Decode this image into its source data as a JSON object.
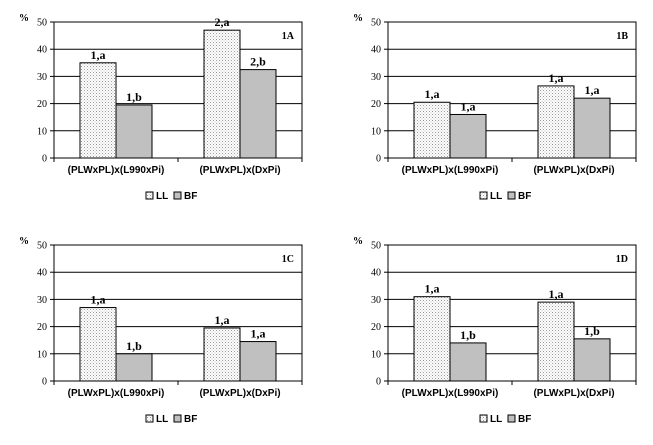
{
  "chart_data": [
    {
      "type": "bar",
      "panel_label": "1A",
      "ylabel": "%",
      "ylim": [
        0,
        50
      ],
      "yticks": [
        0,
        10,
        20,
        30,
        40,
        50
      ],
      "grid": true,
      "categories": [
        "(PLWxPL)x(L990xPi)",
        "(PLWxPL)x(DxPi)"
      ],
      "series": [
        {
          "name": "LL",
          "values": [
            35,
            47
          ],
          "labels": [
            "1,a",
            "2,a"
          ],
          "color": "#ffffff",
          "pattern": "dotted"
        },
        {
          "name": "BF",
          "values": [
            19.5,
            32.5
          ],
          "labels": [
            "1,b",
            "2,b"
          ],
          "color": "#c0c0c0"
        }
      ],
      "legend_position": "bottom"
    },
    {
      "type": "bar",
      "panel_label": "1B",
      "ylabel": "%",
      "ylim": [
        0,
        50
      ],
      "yticks": [
        0,
        10,
        20,
        30,
        40,
        50
      ],
      "grid": true,
      "categories": [
        "(PLWxPL)x(L990xPi)",
        "(PLWxPL)x(DxPi)"
      ],
      "series": [
        {
          "name": "LL",
          "values": [
            20.5,
            26.5
          ],
          "labels": [
            "1,a",
            "1,a"
          ],
          "color": "#ffffff",
          "pattern": "dotted"
        },
        {
          "name": "BF",
          "values": [
            16,
            22
          ],
          "labels": [
            "1,a",
            "1,a"
          ],
          "color": "#c0c0c0"
        }
      ],
      "legend_position": "bottom"
    },
    {
      "type": "bar",
      "panel_label": "1C",
      "ylabel": "%",
      "ylim": [
        0,
        50
      ],
      "yticks": [
        0,
        10,
        20,
        30,
        40,
        50
      ],
      "grid": true,
      "categories": [
        "(PLWxPL)x(L990xPi)",
        "(PLWxPL)x(DxPi)"
      ],
      "series": [
        {
          "name": "LL",
          "values": [
            27,
            19.5
          ],
          "labels": [
            "1,a",
            "1,a"
          ],
          "color": "#ffffff",
          "pattern": "dotted"
        },
        {
          "name": "BF",
          "values": [
            10,
            14.5
          ],
          "labels": [
            "1,b",
            "1,a"
          ],
          "color": "#c0c0c0"
        }
      ],
      "legend_position": "bottom"
    },
    {
      "type": "bar",
      "panel_label": "1D",
      "ylabel": "%",
      "ylim": [
        0,
        50
      ],
      "yticks": [
        0,
        10,
        20,
        30,
        40,
        50
      ],
      "grid": true,
      "categories": [
        "(PLWxPL)x(L990xPi)",
        "(PLWxPL)x(DxPi)"
      ],
      "series": [
        {
          "name": "LL",
          "values": [
            31,
            29
          ],
          "labels": [
            "1,a",
            "1,a"
          ],
          "color": "#ffffff",
          "pattern": "dotted"
        },
        {
          "name": "BF",
          "values": [
            14,
            15.5
          ],
          "labels": [
            "1,b",
            "1,b"
          ],
          "color": "#c0c0c0"
        }
      ],
      "legend_position": "bottom"
    }
  ]
}
